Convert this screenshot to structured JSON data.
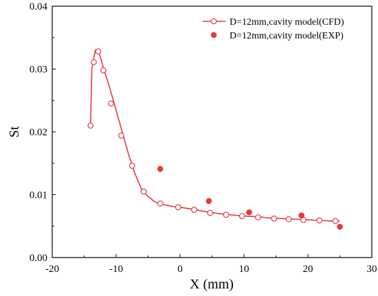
{
  "chart_data": {
    "type": "scatter",
    "xlabel": "X (mm)",
    "ylabel": "St",
    "xlim": [
      -20,
      30
    ],
    "ylim": [
      0.0,
      0.04
    ],
    "x_ticks": [
      -20,
      -10,
      0,
      10,
      20,
      30
    ],
    "y_ticks": [
      0.0,
      0.01,
      0.02,
      0.03,
      0.04
    ],
    "x_tick_labels": [
      "-20",
      "-10",
      "0",
      "10",
      "20",
      "30"
    ],
    "y_tick_labels": [
      "0.00",
      "0.01",
      "0.02",
      "0.03",
      "0.04"
    ],
    "grid": false,
    "legend_position": "top-right",
    "colors": {
      "series": "#e8383b",
      "axis": "#000000"
    },
    "series": [
      {
        "name": "D=12mm,cavity model(CFD)",
        "style": "line-open-circles",
        "curve_x": [
          -14.0,
          -13.9,
          -13.8,
          -13.5,
          -13.2,
          -13.0,
          -12.8,
          -12.5,
          -12.0,
          -11.0,
          -10.0,
          -9.0,
          -8.0,
          -7.0,
          -6.0,
          -5.0,
          -4.0,
          -3.0,
          -2.0,
          -1.0,
          0.0,
          2.0,
          4.0,
          6.0,
          8.0,
          10.0,
          12.0,
          14.0,
          16.0,
          18.0,
          20.0,
          22.0,
          24.0,
          25.0
        ],
        "curve_y": [
          0.021,
          0.026,
          0.03,
          0.0318,
          0.0331,
          0.033,
          0.0328,
          0.032,
          0.0302,
          0.027,
          0.0234,
          0.0198,
          0.0162,
          0.0132,
          0.0108,
          0.0097,
          0.0089,
          0.0085,
          0.0083,
          0.0081,
          0.008,
          0.0077,
          0.0073,
          0.007,
          0.0068,
          0.0066,
          0.0065,
          0.0063,
          0.0062,
          0.0061,
          0.006,
          0.0059,
          0.0058,
          0.0058
        ],
        "x": [
          -14.0,
          -13.5,
          -12.8,
          -12.0,
          -10.8,
          -9.2,
          -7.5,
          -5.7,
          -3.1,
          -0.3,
          2.2,
          4.7,
          7.2,
          9.7,
          12.2,
          14.7,
          17.0,
          19.3,
          21.8,
          24.3
        ],
        "y": [
          0.021,
          0.0311,
          0.0328,
          0.0298,
          0.0245,
          0.0194,
          0.0146,
          0.0105,
          0.0086,
          0.008,
          0.0076,
          0.0071,
          0.0068,
          0.0066,
          0.0064,
          0.0062,
          0.0061,
          0.006,
          0.0059,
          0.0058
        ]
      },
      {
        "name": "D=12mm,cavity model(EXP)",
        "style": "filled-circles",
        "x": [
          -3.1,
          4.5,
          10.8,
          19.0,
          25.0
        ],
        "y": [
          0.0141,
          0.009,
          0.0072,
          0.0067,
          0.0049
        ]
      }
    ]
  }
}
